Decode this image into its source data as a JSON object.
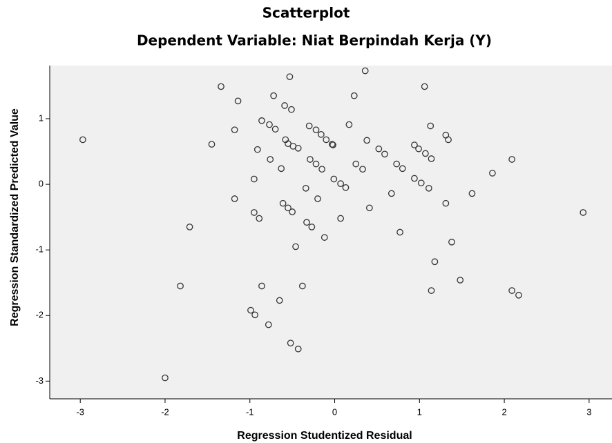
{
  "chart_data": {
    "type": "scatter",
    "title": "Scatterplot",
    "subtitle": "Dependent Variable: Niat Berpindah Kerja (Y)",
    "x_label": "Regression Studentized Residual",
    "y_label": "Regression Standardized Predicted Value",
    "color": "#333333",
    "xlim": [
      -3.36,
      3.27
    ],
    "ylim": [
      -3.27,
      1.81
    ],
    "xticks": [
      -3,
      -2,
      -1,
      0,
      1,
      2,
      3
    ],
    "yticks": [
      -3,
      -2,
      -1,
      0,
      1
    ],
    "x": [
      -2.97,
      -1.34,
      -0.53,
      0.36,
      -1.14,
      -0.72,
      -0.59,
      -0.51,
      0.23,
      1.06,
      -1.45,
      -1.18,
      -0.86,
      -0.77,
      -0.7,
      -0.58,
      -0.55,
      -0.49,
      -0.43,
      -0.3,
      -0.22,
      -0.16,
      -0.1,
      -0.03,
      -0.02,
      0.17,
      0.38,
      0.52,
      0.59,
      0.94,
      0.99,
      1.07,
      1.14,
      1.13,
      1.31,
      1.34,
      2.09,
      -0.91,
      -0.76,
      -0.63,
      -0.29,
      -0.22,
      -0.15,
      0.25,
      0.33,
      0.73,
      0.8,
      0.94,
      1.02,
      1.11,
      -0.95,
      -0.01,
      0.07,
      0.13,
      -0.34,
      0.67,
      1.62,
      1.86,
      -1.18,
      -0.2,
      1.31,
      -0.61,
      -0.55,
      -0.5,
      -0.95,
      -0.89,
      0.41,
      2.93,
      -1.71,
      -0.33,
      -0.27,
      0.07,
      -0.12,
      0.77,
      -0.46,
      1.38,
      1.18,
      -1.82,
      -0.86,
      -0.38,
      1.48,
      1.14,
      2.09,
      2.17,
      -0.65,
      -0.99,
      -0.94,
      -0.78,
      -0.52,
      -0.43,
      -2.0
    ],
    "y": [
      0.68,
      1.49,
      1.64,
      1.73,
      1.27,
      1.35,
      1.2,
      1.14,
      1.35,
      1.49,
      0.61,
      0.83,
      0.97,
      0.91,
      0.84,
      0.68,
      0.62,
      0.58,
      0.55,
      0.89,
      0.83,
      0.76,
      0.68,
      0.61,
      0.6,
      0.91,
      0.67,
      0.54,
      0.46,
      0.6,
      0.54,
      0.47,
      0.39,
      0.89,
      0.75,
      0.68,
      0.38,
      0.53,
      0.38,
      0.24,
      0.38,
      0.31,
      0.23,
      0.31,
      0.23,
      0.31,
      0.24,
      0.09,
      0.02,
      -0.06,
      0.08,
      0.08,
      0.01,
      -0.05,
      -0.06,
      -0.14,
      -0.14,
      0.17,
      -0.22,
      -0.22,
      -0.29,
      -0.29,
      -0.36,
      -0.42,
      -0.43,
      -0.52,
      -0.36,
      -0.43,
      -0.65,
      -0.58,
      -0.65,
      -0.52,
      -0.81,
      -0.73,
      -0.95,
      -0.88,
      -1.18,
      -1.55,
      -1.55,
      -1.55,
      -1.46,
      -1.62,
      -1.62,
      -1.69,
      -1.77,
      -1.92,
      -1.99,
      -2.14,
      -2.42,
      -2.51,
      -2.95
    ]
  }
}
